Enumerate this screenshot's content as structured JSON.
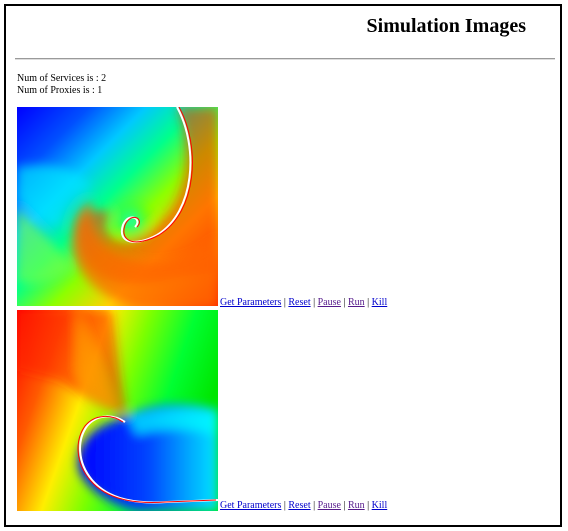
{
  "page": {
    "title": "Simulation Images"
  },
  "info": {
    "services": "Num of Services is : 2",
    "proxies": "Num of Proxies is : 1"
  },
  "colors": {
    "link": "#0000cc",
    "visited_link": "#551a8b",
    "rule": "#9a9a9a"
  },
  "simulations": [
    {
      "image": "spiral-wave-simulation-1",
      "controls": {
        "get_parameters": "Get Parameters",
        "reset": "Reset",
        "pause": "Pause",
        "run": "Run",
        "kill": "Kill",
        "separator": "|"
      }
    },
    {
      "image": "spiral-wave-simulation-2",
      "controls": {
        "get_parameters": "Get Parameters",
        "reset": "Reset",
        "pause": "Pause",
        "run": "Run",
        "kill": "Kill",
        "separator": "|"
      }
    }
  ]
}
